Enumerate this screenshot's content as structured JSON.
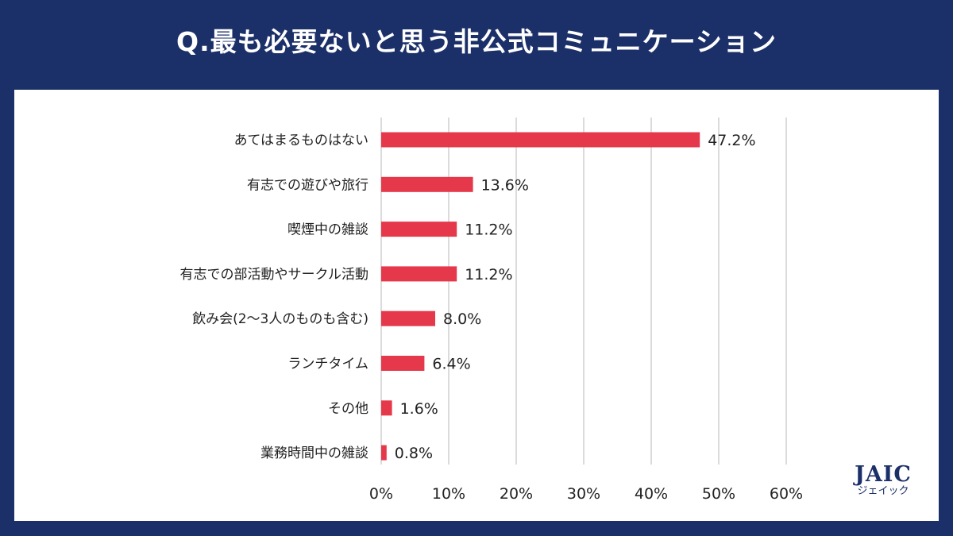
{
  "title": "Q.最も必要ないと思う非公式コミュニケーション",
  "logo": {
    "main": "JAIC",
    "sub": "ジェイック"
  },
  "colors": {
    "background": "#1b2f68",
    "bar": "#e5384a",
    "grid": "#cfcfcf"
  },
  "chart_data": {
    "type": "bar",
    "orientation": "horizontal",
    "categories": [
      "あてはまるものはない",
      "有志での遊びや旅行",
      "喫煙中の雑談",
      "有志での部活動やサークル活動",
      "飲み会(2〜3人のものも含む)",
      "ランチタイム",
      "その他",
      "業務時間中の雑談"
    ],
    "values": [
      47.2,
      13.6,
      11.2,
      11.2,
      8.0,
      6.4,
      1.6,
      0.8
    ],
    "value_labels": [
      "47.2%",
      "13.6%",
      "11.2%",
      "11.2%",
      "8.0%",
      "6.4%",
      "1.6%",
      "0.8%"
    ],
    "xlim": [
      0,
      60
    ],
    "xticks": [
      0,
      10,
      20,
      30,
      40,
      50,
      60
    ],
    "xtick_labels": [
      "0%",
      "10%",
      "20%",
      "30%",
      "40%",
      "50%",
      "60%"
    ],
    "grid": "vertical",
    "legend": "none"
  }
}
